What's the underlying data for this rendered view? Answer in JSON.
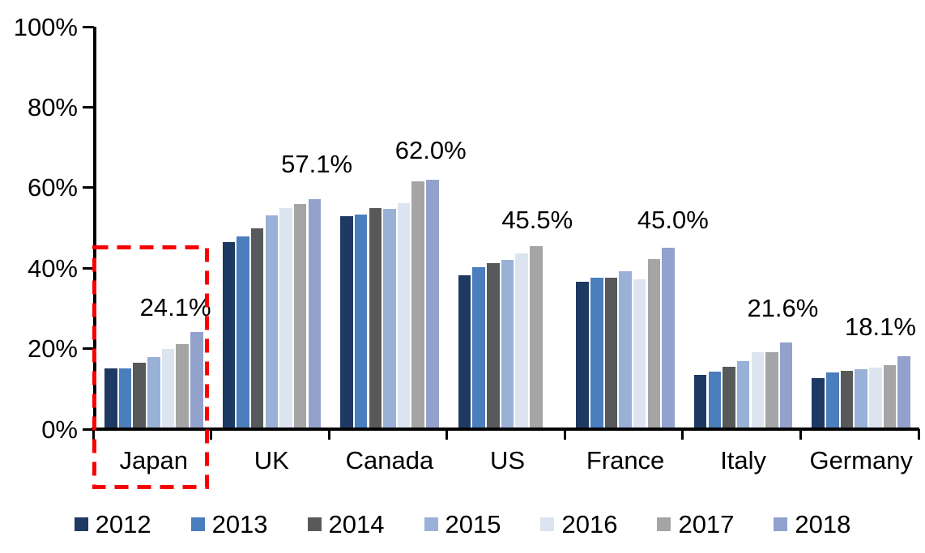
{
  "chart_data": {
    "type": "bar",
    "title": "",
    "xlabel": "",
    "ylabel": "",
    "ylim": [
      0,
      100
    ],
    "grid": false,
    "legend_position": "bottom",
    "y_ticks": [
      "0%",
      "20%",
      "40%",
      "60%",
      "80%",
      "100%"
    ],
    "categories": [
      "Japan",
      "UK",
      "Canada",
      "US",
      "France",
      "Italy",
      "Germany"
    ],
    "series": [
      {
        "name": "2012",
        "color": "#1E3A63",
        "values": [
          15.0,
          46.5,
          53.0,
          38.3,
          36.6,
          13.4,
          12.6
        ]
      },
      {
        "name": "2013",
        "color": "#4B7EBD",
        "values": [
          15.0,
          47.8,
          53.4,
          40.2,
          37.7,
          14.3,
          14.1
        ]
      },
      {
        "name": "2014",
        "color": "#58595B",
        "values": [
          16.6,
          50.0,
          54.9,
          41.3,
          37.6,
          15.4,
          14.4
        ]
      },
      {
        "name": "2015",
        "color": "#99B1D7",
        "values": [
          18.0,
          53.2,
          54.7,
          42.1,
          39.2,
          16.9,
          14.8
        ]
      },
      {
        "name": "2016",
        "color": "#DCE4F0",
        "values": [
          19.9,
          55.0,
          56.2,
          43.7,
          37.2,
          19.1,
          15.3
        ]
      },
      {
        "name": "2017",
        "color": "#A5A5A6",
        "values": [
          21.1,
          55.9,
          61.6,
          45.5,
          42.3,
          19.2,
          15.9
        ]
      },
      {
        "name": "2018",
        "color": "#92A2CD",
        "values": [
          24.1,
          57.1,
          62.0,
          null,
          45.0,
          21.6,
          18.1
        ]
      }
    ],
    "data_labels": [
      "24.1%",
      "57.1%",
      "62.0%",
      "45.5%",
      "45.0%",
      "21.6%",
      "18.1%"
    ],
    "highlight": {
      "target": "Japan",
      "style": "dashed-rectangle",
      "color": "#F80000"
    }
  }
}
